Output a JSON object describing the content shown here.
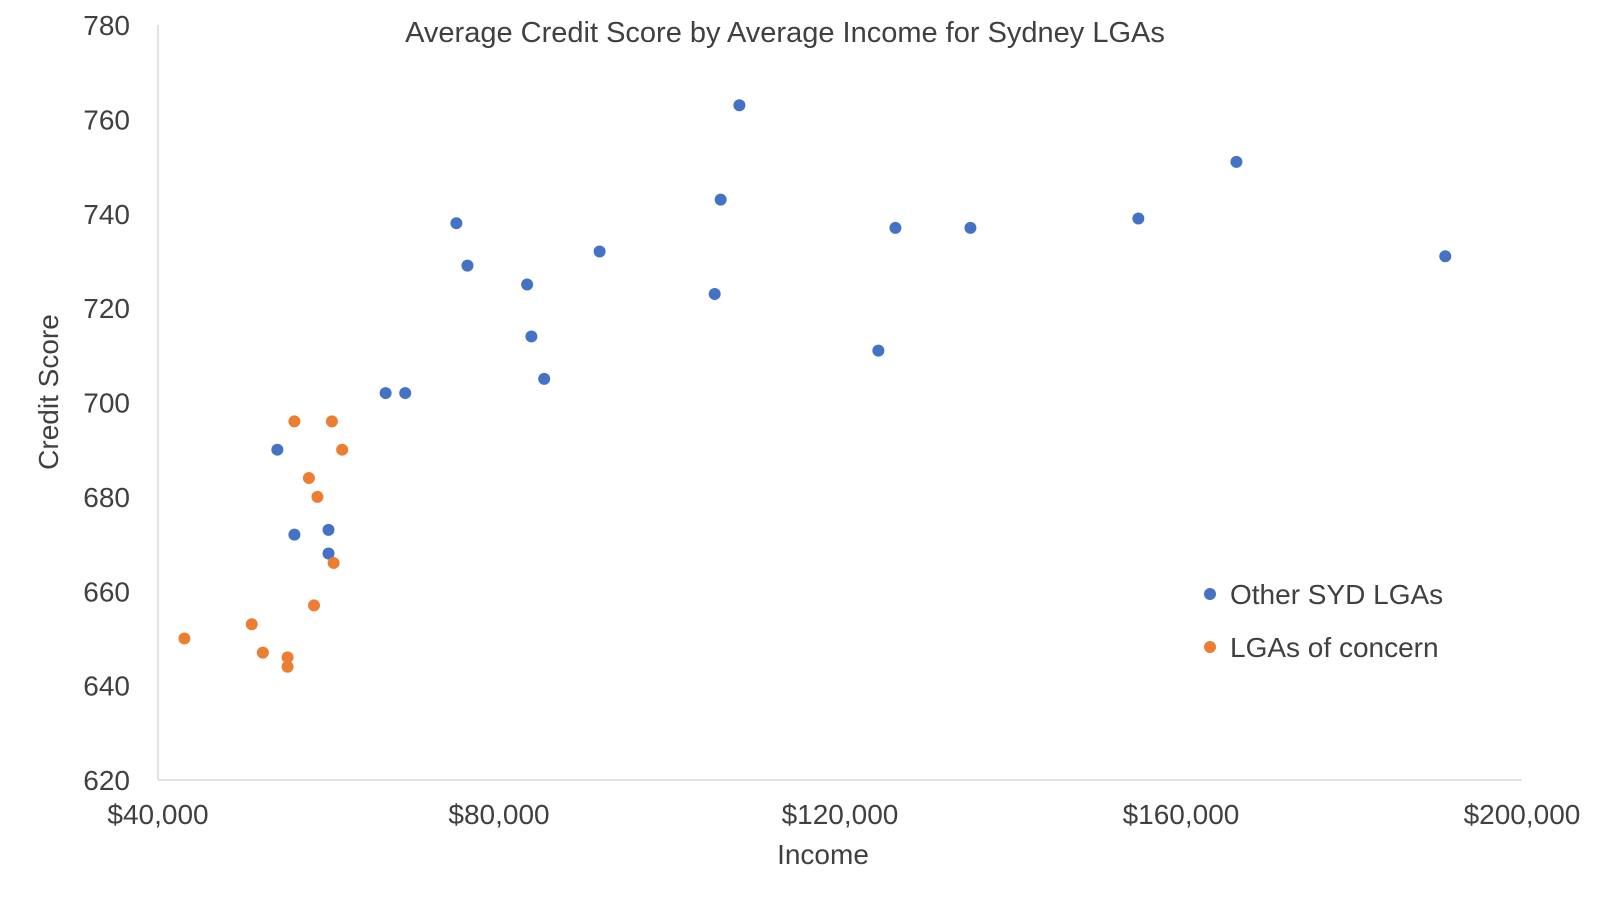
{
  "chart_data": {
    "type": "scatter",
    "title": "Average Credit Score by Average Income for Sydney LGAs",
    "xlabel": "Income",
    "ylabel": "Credit Score",
    "xlim": [
      40000,
      200000
    ],
    "ylim": [
      620,
      780
    ],
    "x_ticks": [
      40000,
      80000,
      120000,
      160000,
      200000
    ],
    "x_tick_labels": [
      "$40,000",
      "$80,000",
      "$120,000",
      "$160,000",
      "$200,000"
    ],
    "y_ticks": [
      620,
      640,
      660,
      680,
      700,
      720,
      740,
      760,
      780
    ],
    "y_tick_labels": [
      "620",
      "640",
      "660",
      "680",
      "700",
      "720",
      "740",
      "760",
      "780"
    ],
    "grid": false,
    "legend_position": "right",
    "series": [
      {
        "name": "Other SYD LGAs",
        "color": "#4472C4",
        "points": [
          [
            54000,
            690
          ],
          [
            56000,
            672
          ],
          [
            60000,
            673
          ],
          [
            60000,
            668
          ],
          [
            66700,
            702
          ],
          [
            69000,
            702
          ],
          [
            75000,
            738
          ],
          [
            76300,
            729
          ],
          [
            83300,
            725
          ],
          [
            83800,
            714
          ],
          [
            85300,
            705
          ],
          [
            91800,
            732
          ],
          [
            105300,
            723
          ],
          [
            106000,
            743
          ],
          [
            108200,
            763
          ],
          [
            124500,
            711
          ],
          [
            126500,
            737
          ],
          [
            135300,
            737
          ],
          [
            155000,
            739
          ],
          [
            166500,
            751
          ],
          [
            191000,
            731
          ]
        ]
      },
      {
        "name": "LGAs of concern",
        "color": "#ED7D31",
        "points": [
          [
            43100,
            650
          ],
          [
            51000,
            653
          ],
          [
            52300,
            647
          ],
          [
            55200,
            646
          ],
          [
            55200,
            644
          ],
          [
            56000,
            696
          ],
          [
            57700,
            684
          ],
          [
            58300,
            657
          ],
          [
            58700,
            680
          ],
          [
            60400,
            696
          ],
          [
            60600,
            666
          ],
          [
            61600,
            690
          ]
        ]
      }
    ]
  }
}
